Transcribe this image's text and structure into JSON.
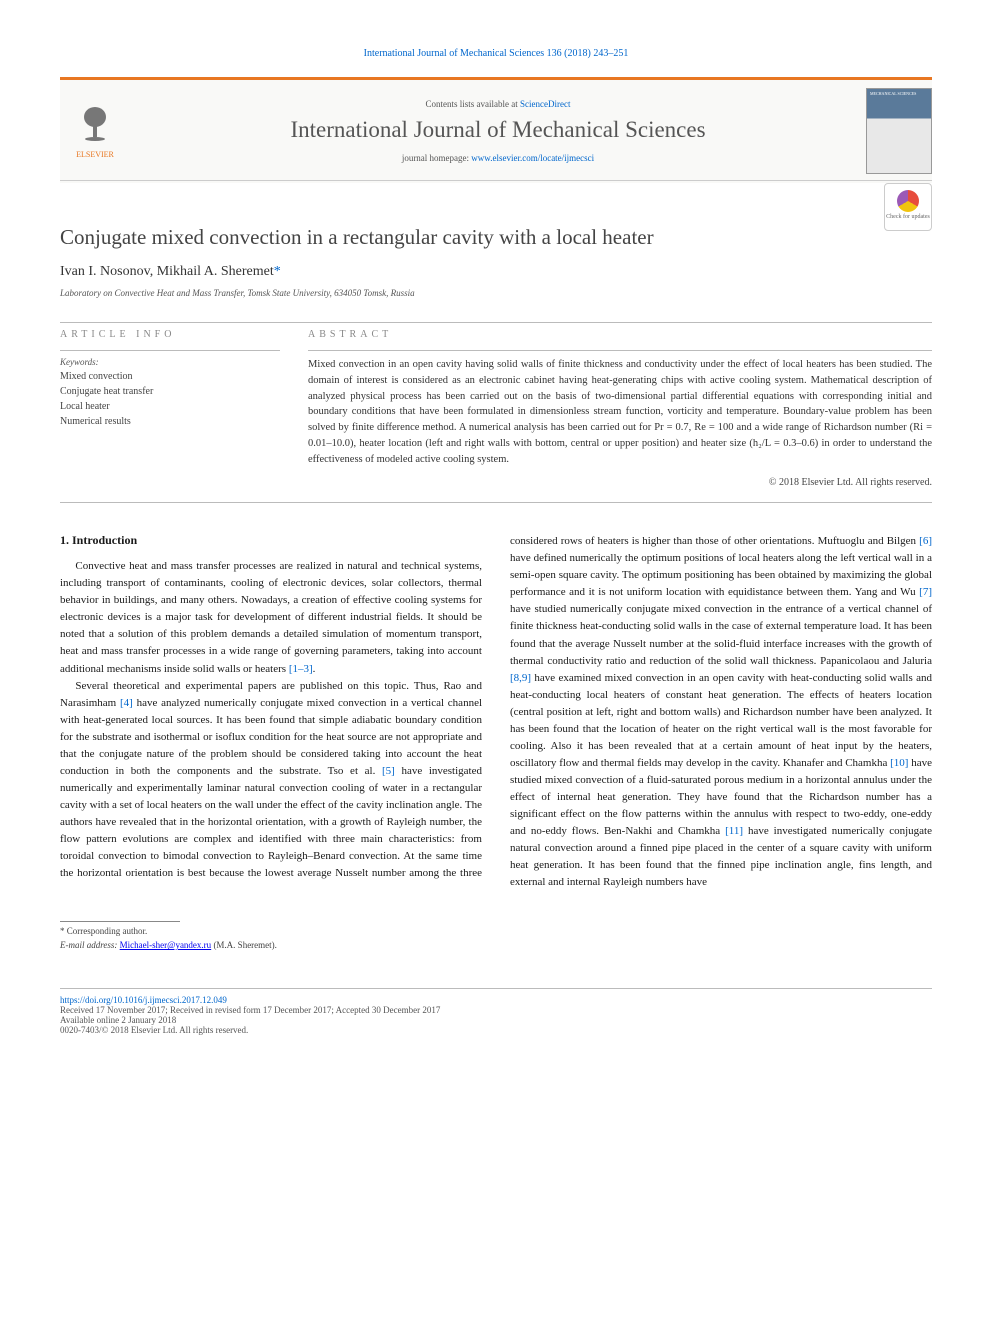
{
  "running_header": "International Journal of Mechanical Sciences 136 (2018) 243–251",
  "banner": {
    "publisher": "ELSEVIER",
    "contents_prefix": "Contents lists available at ",
    "contents_link": "ScienceDirect",
    "journal_name": "International Journal of Mechanical Sciences",
    "homepage_prefix": "journal homepage: ",
    "homepage_url": "www.elsevier.com/locate/ijmecsci",
    "cover_text": "MECHANICAL SCIENCES"
  },
  "check_updates_label": "Check for updates",
  "article": {
    "title": "Conjugate mixed convection in a rectangular cavity with a local heater",
    "authors_html": "Ivan I. Nosonov, Mikhail A. Sheremet",
    "corr_marker": "*",
    "affiliation": "Laboratory on Convective Heat and Mass Transfer, Tomsk State University, 634050 Tomsk, Russia"
  },
  "info": {
    "label": "ARTICLE INFO",
    "keywords_label": "Keywords:",
    "keywords": [
      "Mixed convection",
      "Conjugate heat transfer",
      "Local heater",
      "Numerical results"
    ]
  },
  "abstract": {
    "label": "ABSTRACT",
    "text": "Mixed convection in an open cavity having solid walls of finite thickness and conductivity under the effect of local heaters has been studied. The domain of interest is considered as an electronic cabinet having heat-generating chips with active cooling system. Mathematical description of analyzed physical process has been carried out on the basis of two-dimensional partial differential equations with corresponding initial and boundary conditions that have been formulated in dimensionless stream function, vorticity and temperature. Boundary-value problem has been solved by finite difference method. A numerical analysis has been carried out for Pr = 0.7, Re = 100 and a wide range of Richardson number (Ri = 0.01–10.0), heater location (left and right walls with bottom, central or upper position) and heater size (h₂/L = 0.3–0.6) in order to understand the effectiveness of modeled active cooling system.",
    "copyright": "© 2018 Elsevier Ltd. All rights reserved."
  },
  "body": {
    "heading": "1. Introduction",
    "paragraphs": [
      "Convective heat and mass transfer processes are realized in natural and technical systems, including transport of contaminants, cooling of electronic devices, solar collectors, thermal behavior in buildings, and many others. Nowadays, a creation of effective cooling systems for electronic devices is a major task for development of different industrial fields. It should be noted that a solution of this problem demands a detailed simulation of momentum transport, heat and mass transfer processes in a wide range of governing parameters, taking into account additional mechanisms inside solid walls or heaters [1–3].",
      "Several theoretical and experimental papers are published on this topic. Thus, Rao and Narasimham [4] have analyzed numerically conjugate mixed convection in a vertical channel with heat-generated local sources. It has been found that simple adiabatic boundary condition for the substrate and isothermal or isoflux condition for the heat source are not appropriate and that the conjugate nature of the problem should be considered taking into account the heat conduction in both the components and the substrate. Tso et al. [5] have investigated numerically and experimentally laminar natural convection cooling of water in a rectangular cavity with a set of local heaters on the wall under the effect of the cavity inclination angle. The authors have revealed that in the horizontal orientation, with a growth of Rayleigh number, the flow pattern evolutions are complex and identified with three main characteristics: from toroidal convection to bimodal convection to Rayleigh–Benard convection. At the same time the horizontal orientation is best because the lowest average Nusselt number among the three considered rows of heaters is higher than those of other orientations. Muftuoglu and Bilgen [6] have defined numerically the optimum positions of local heaters along the left vertical wall in a semi-open square cavity. The optimum positioning has been obtained by maximizing the global performance and it is not uniform location with equidistance between them. Yang and Wu [7] have studied numerically conjugate mixed convection in the entrance of a vertical channel of finite thickness heat-conducting solid walls in the case of external temperature load. It has been found that the average Nusselt number at the solid-fluid interface increases with the growth of thermal conductivity ratio and reduction of the solid wall thickness. Papanicolaou and Jaluria [8,9] have examined mixed convection in an open cavity with heat-conducting solid walls and heat-conducting local heaters of constant heat generation. The effects of heaters location (central position at left, right and bottom walls) and Richardson number have been analyzed. It has been found that the location of heater on the right vertical wall is the most favorable for cooling. Also it has been revealed that at a certain amount of heat input by the heaters, oscillatory flow and thermal fields may develop in the cavity. Khanafer and Chamkha [10] have studied mixed convection of a fluid-saturated porous medium in a horizontal annulus under the effect of internal heat generation. They have found that the Richardson number has a significant effect on the flow patterns within the annulus with respect to two-eddy, one-eddy and no-eddy flows. Ben-Nakhi and Chamkha [11] have investigated numerically conjugate natural convection around a finned pipe placed in the center of a square cavity with uniform heat generation. It has been found that the finned pipe inclination angle, fins length, and external and internal Rayleigh numbers have"
    ],
    "refs": [
      "[1–3]",
      "[4]",
      "[5]",
      "[6]",
      "[7]",
      "[8,9]",
      "[10]",
      "[11]"
    ]
  },
  "footnote": {
    "corr": "* Corresponding author.",
    "email_label": "E-mail address: ",
    "email": "Michael-sher@yandex.ru",
    "email_suffix": " (M.A. Sheremet)."
  },
  "footer": {
    "doi": "https://doi.org/10.1016/j.ijmecsci.2017.12.049",
    "received": "Received 17 November 2017; Received in revised form 17 December 2017; Accepted 30 December 2017",
    "available": "Available online 2 January 2018",
    "issn": "0020-7403/© 2018 Elsevier Ltd. All rights reserved."
  },
  "colors": {
    "accent_orange": "#e87722",
    "link_blue": "#0066cc",
    "text_gray": "#555555",
    "rule_gray": "#bbbbbb"
  }
}
